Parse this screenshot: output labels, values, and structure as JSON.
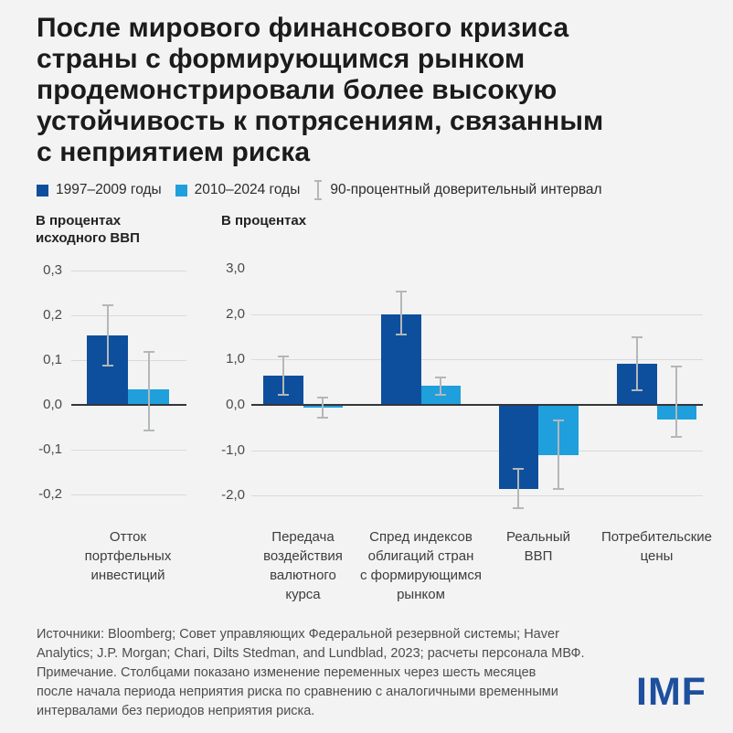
{
  "title": "После мирового финансового кризиса\nстраны с формирующимся рынком\nпродемонстрировали более высокую\nустойчивость к потрясениям, связанным\nс неприятием риска",
  "legend": {
    "series1": "1997–2009 годы",
    "series2": "2010–2024 годы",
    "ci": "90-процентный доверительный интервал"
  },
  "colors": {
    "series1": "#0d4f9c",
    "series2": "#1f9fdc",
    "ci": "#b4b7ba",
    "gridline": "#dadada",
    "zero_line": "#33363b",
    "imf_logo": "#1e4f9e",
    "background": "#f3f3f3"
  },
  "chart_data": [
    {
      "type": "bar",
      "ylabel": "В процентах\nисходного ВВП",
      "categories": [
        "Отток\nпортфельных\nинвестиций"
      ],
      "series": [
        {
          "name": "1997–2009 годы",
          "color_key": "series1",
          "values": [
            0.155
          ],
          "ci_low": [
            0.085
          ],
          "ci_high": [
            0.225
          ]
        },
        {
          "name": "2010–2024 годы",
          "color_key": "series2",
          "values": [
            0.035
          ],
          "ci_low": [
            -0.06
          ],
          "ci_high": [
            0.12
          ]
        }
      ],
      "yticks": [
        {
          "label": "0,3",
          "value": 0.3,
          "gridline": true
        },
        {
          "label": "0,2",
          "value": 0.2,
          "gridline": true
        },
        {
          "label": "0,1",
          "value": 0.1,
          "gridline": true
        },
        {
          "label": "0,0",
          "value": 0.0,
          "gridline": false
        },
        {
          "label": "-0,1",
          "value": -0.1,
          "gridline": true
        },
        {
          "label": "-0,2",
          "value": -0.2,
          "gridline": true
        }
      ],
      "ylim": [
        -0.25,
        0.3
      ],
      "legend_position": "top",
      "grid": true
    },
    {
      "type": "bar",
      "ylabel": "В процентах",
      "categories": [
        "Передача\nвоздействия\nвалютного\nкурса",
        "Спред индексов\nоблигаций стран\nс формирующимся\nрынком",
        "Реальный\nВВП",
        "Потребительские\nцены"
      ],
      "series": [
        {
          "name": "1997–2009 годы",
          "color_key": "series1",
          "values": [
            0.65,
            2.0,
            -1.85,
            0.9
          ],
          "ci_low": [
            0.21,
            1.52,
            -2.3,
            0.3
          ],
          "ci_high": [
            1.08,
            2.52,
            -1.38,
            1.5
          ]
        },
        {
          "name": "2010–2024 годы",
          "color_key": "series2",
          "values": [
            -0.07,
            0.42,
            -1.1,
            -0.32
          ],
          "ci_low": [
            -0.31,
            0.2,
            -1.88,
            -0.73
          ],
          "ci_high": [
            0.18,
            0.62,
            -0.33,
            0.87
          ]
        }
      ],
      "yticks": [
        {
          "label": "3,0",
          "value": 3.0,
          "gridline": false
        },
        {
          "label": "2,0",
          "value": 2.0,
          "gridline": true
        },
        {
          "label": "1,0",
          "value": 1.0,
          "gridline": true
        },
        {
          "label": "0,0",
          "value": 0.0,
          "gridline": false
        },
        {
          "label": "-1,0",
          "value": -1.0,
          "gridline": true
        },
        {
          "label": "-2,0",
          "value": -2.0,
          "gridline": true
        }
      ],
      "ylim": [
        -2.1,
        3.0
      ],
      "legend_position": "top",
      "grid": true
    }
  ],
  "footer": {
    "sources": "Источники: Bloomberg; Совет управляющих Федеральной резервной системы; Haver\nAnalytics; J.P. Morgan; Chari, Dilts Stedman, and Lundblad, 2023; расчеты персонала МВФ.",
    "note": "Примечание. Столбцами показано изменение переменных через шесть месяцев\nпосле начала периода неприятия риска по сравнению с аналогичными временными\nинтервалами без периодов неприятия риска.",
    "logo": "IMF"
  }
}
